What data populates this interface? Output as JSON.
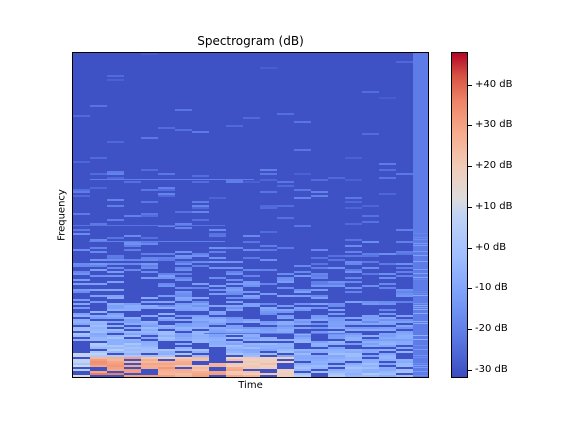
{
  "chart_data": {
    "type": "heatmap",
    "title": "Spectrogram (dB)",
    "xlabel": "Time",
    "ylabel": "Frequency",
    "colormap": "coolwarm",
    "colorbar": {
      "range": [
        -32,
        48
      ],
      "ticks": [
        -30,
        -20,
        -10,
        0,
        10,
        20,
        30,
        40
      ],
      "tick_labels": [
        "-30 dB",
        "-20 dB",
        "-10 dB",
        "+0 dB",
        "+10 dB",
        "+20 dB",
        "+30 dB",
        "+40 dB"
      ]
    }
  }
}
